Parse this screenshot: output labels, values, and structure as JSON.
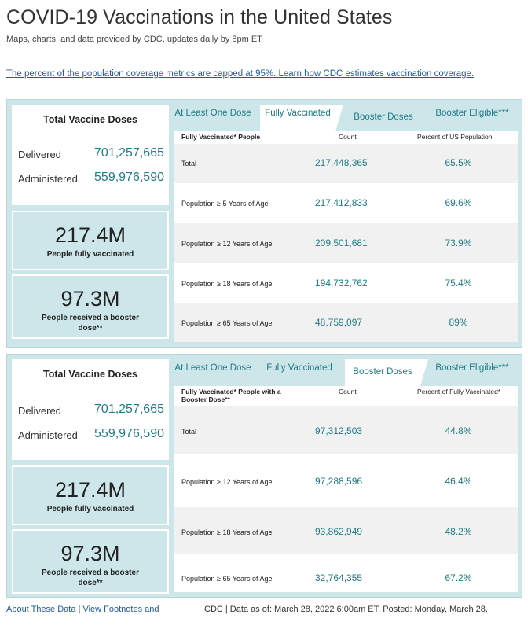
{
  "header": {
    "title": "COVID-19 Vaccinations in the United States",
    "subtitle": "Maps, charts, and data provided by CDC, updates daily by 8pm ET",
    "coverage_link": "The percent of the population coverage metrics are capped at 95%. Learn how CDC estimates vaccination coverage."
  },
  "doses": {
    "title": "Total Vaccine Doses",
    "delivered_label": "Delivered",
    "delivered_value": "701,257,665",
    "administered_label": "Administered",
    "administered_value": "559,976,590"
  },
  "stats": {
    "fully_value": "217.4M",
    "fully_label": "People fully vaccinated",
    "booster_value": "97.3M",
    "booster_label": "People received a booster dose**"
  },
  "tabs": {
    "at_least_one": "At Least One Dose",
    "fully": "Fully Vaccinated",
    "booster_doses": "Booster Doses",
    "booster_eligible": "Booster Eligible***"
  },
  "table1": {
    "col1": "Fully Vaccinated* People",
    "col2": "Count",
    "col3": "Percent of US Population",
    "rows": [
      {
        "label": "Total",
        "count": "217,448,365",
        "pct": "65.5%"
      },
      {
        "label": "Population ≥ 5 Years of Age",
        "count": "217,412,833",
        "pct": "69.6%"
      },
      {
        "label": "Population ≥ 12 Years of Age",
        "count": "209,501,681",
        "pct": "73.9%"
      },
      {
        "label": "Population ≥ 18 Years of Age",
        "count": "194,732,762",
        "pct": "75.4%"
      },
      {
        "label": "Population ≥ 65 Years of Age",
        "count": "48,759,097",
        "pct": "89%"
      }
    ]
  },
  "table2": {
    "col1": "Fully Vaccinated* People with a Booster Dose**",
    "col2": "Count",
    "col3": "Percent of Fully Vaccinated*",
    "rows": [
      {
        "label": "Total",
        "count": "97,312,503",
        "pct": "44.8%"
      },
      {
        "label": "Population ≥ 12 Years of Age",
        "count": "97,288,596",
        "pct": "46.4%"
      },
      {
        "label": "Population ≥ 18 Years of Age",
        "count": "93,862,949",
        "pct": "48.2%"
      },
      {
        "label": "Population ≥ 65 Years of Age",
        "count": "32,764,355",
        "pct": "67.2%"
      }
    ]
  },
  "footer": {
    "about": "About These Data",
    "separator": "|",
    "footnotes": "View Footnotes and",
    "status": "CDC | Data as of: March 28, 2022 6:00am ET. Posted: Monday, March 28,"
  }
}
